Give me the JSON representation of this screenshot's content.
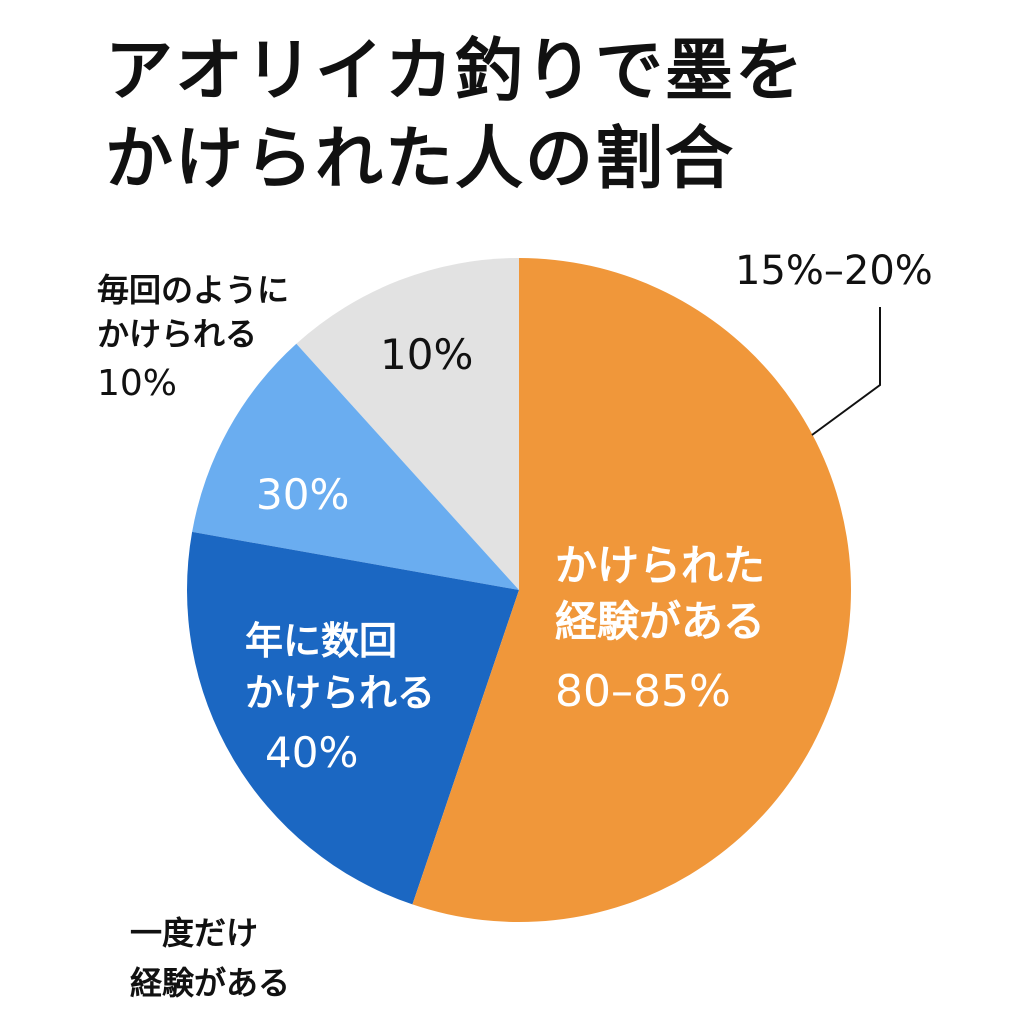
{
  "title_lines": [
    "アオリイカ釣りで墨を",
    "かけられた人の割合"
  ],
  "chart_data": {
    "type": "pie",
    "title": "アオリイカ釣りで墨をかけられた人の割合",
    "start": "12 o'clock, clockwise",
    "slices": [
      {
        "label_lines": [
          "かけられた",
          "経験がある"
        ],
        "value_label": "80–85%",
        "share": 55.2,
        "color": "#F0973A"
      },
      {
        "label_lines": [
          "年に数回",
          "かけられる"
        ],
        "value_label": "40%",
        "share": 22.6,
        "color": "#1B67C2"
      },
      {
        "label_lines": [],
        "value_label": "30%",
        "share": 10.5,
        "color": "#6AADF0"
      },
      {
        "label_lines": [],
        "value_label": "10%",
        "share": 11.7,
        "color": "#E2E2E2"
      }
    ],
    "annotations": {
      "callout": "15%–20%",
      "top_left": [
        "毎回のように",
        "かけられる",
        "10%"
      ],
      "bottom_left": [
        "一度だけ",
        "経験がある"
      ]
    }
  }
}
